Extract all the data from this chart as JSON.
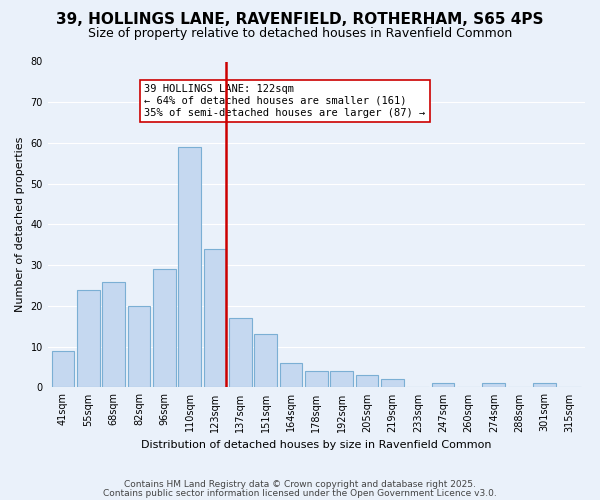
{
  "title": "39, HOLLINGS LANE, RAVENFIELD, ROTHERHAM, S65 4PS",
  "subtitle": "Size of property relative to detached houses in Ravenfield Common",
  "xlabel": "Distribution of detached houses by size in Ravenfield Common",
  "ylabel": "Number of detached properties",
  "bar_labels": [
    "41sqm",
    "55sqm",
    "68sqm",
    "82sqm",
    "96sqm",
    "110sqm",
    "123sqm",
    "137sqm",
    "151sqm",
    "164sqm",
    "178sqm",
    "192sqm",
    "205sqm",
    "219sqm",
    "233sqm",
    "247sqm",
    "260sqm",
    "274sqm",
    "288sqm",
    "301sqm",
    "315sqm"
  ],
  "bar_values": [
    9,
    24,
    26,
    20,
    29,
    59,
    34,
    17,
    13,
    6,
    4,
    4,
    3,
    2,
    0,
    1,
    0,
    1,
    0,
    1,
    0
  ],
  "bar_color": "#c5d8f0",
  "bar_edge_color": "#7bafd4",
  "highlight_index": 6,
  "highlight_line_color": "#cc0000",
  "annotation_line1": "39 HOLLINGS LANE: 122sqm",
  "annotation_line2": "← 64% of detached houses are smaller (161)",
  "annotation_line3": "35% of semi-detached houses are larger (87) →",
  "annotation_box_color": "#ffffff",
  "annotation_box_edge": "#cc0000",
  "ylim": [
    0,
    80
  ],
  "yticks": [
    0,
    10,
    20,
    30,
    40,
    50,
    60,
    70,
    80
  ],
  "bg_color": "#eaf1fa",
  "plot_bg_color": "#eaf1fa",
  "footer_line1": "Contains HM Land Registry data © Crown copyright and database right 2025.",
  "footer_line2": "Contains public sector information licensed under the Open Government Licence v3.0.",
  "title_fontsize": 11,
  "subtitle_fontsize": 9,
  "axis_label_fontsize": 8,
  "tick_fontsize": 7,
  "annotation_fontsize": 7.5,
  "footer_fontsize": 6.5
}
